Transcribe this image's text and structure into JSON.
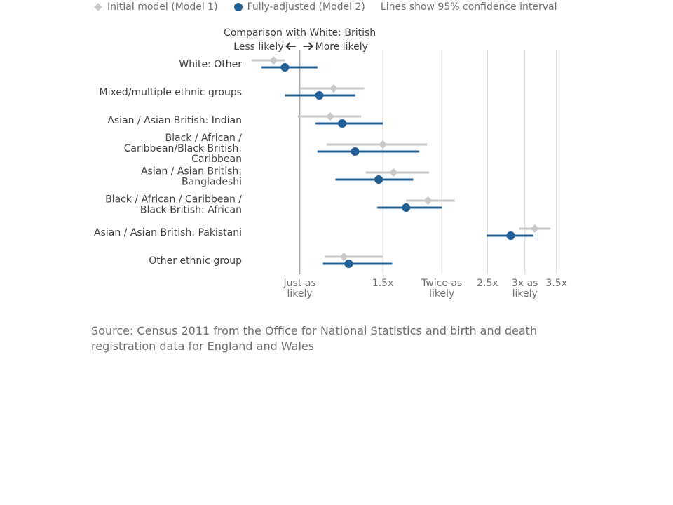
{
  "legend": {
    "model1": "Initial model (Model 1)",
    "model2": "Fully-adjusted (Model 2)",
    "note": "Lines show 95% confidence interval"
  },
  "annotation": {
    "title": "Comparison with White: British",
    "less": "Less likely",
    "more": "More likely"
  },
  "source": "Source: Census 2011 from the Office for National Statistics and birth and death registration data for England and Wales",
  "colors": {
    "model1": "#c8c8c8",
    "model2": "#206095",
    "gridline": "#d9d9d9",
    "reference": "#a8a8a8",
    "text": "#414042",
    "axis_text": "#707070"
  },
  "chart_data": {
    "type": "forest",
    "scale": "log",
    "xlim": [
      0.78,
      3.65
    ],
    "x_ticks": [
      {
        "value": 1.0,
        "label": [
          "Just as",
          "likely"
        ]
      },
      {
        "value": 1.5,
        "label": [
          "1.5x"
        ]
      },
      {
        "value": 2.0,
        "label": [
          "Twice as",
          "likely"
        ]
      },
      {
        "value": 2.5,
        "label": [
          "2.5x"
        ]
      },
      {
        "value": 3.0,
        "label": [
          "3x as",
          "likely"
        ]
      },
      {
        "value": 3.5,
        "label": [
          "3.5x"
        ]
      }
    ],
    "series": [
      {
        "name": "Initial model (Model 1)",
        "marker": "diamond"
      },
      {
        "name": "Fully-adjusted (Model 2)",
        "marker": "circle"
      }
    ],
    "groups": [
      {
        "label": [
          "White: Other"
        ],
        "model1": {
          "estimate": 0.88,
          "low": 0.79,
          "high": 0.93
        },
        "model2": {
          "estimate": 0.93,
          "low": 0.83,
          "high": 1.09
        }
      },
      {
        "label": [
          "Mixed/multiple ethnic groups"
        ],
        "model1": {
          "estimate": 1.18,
          "low": 1.0,
          "high": 1.37
        },
        "model2": {
          "estimate": 1.1,
          "low": 0.93,
          "high": 1.31
        }
      },
      {
        "label": [
          "Asian / Asian British: Indian"
        ],
        "model1": {
          "estimate": 1.16,
          "low": 0.99,
          "high": 1.35
        },
        "model2": {
          "estimate": 1.23,
          "low": 1.08,
          "high": 1.5
        }
      },
      {
        "label": [
          "Black / African /",
          "Caribbean/Black British:",
          "Caribbean"
        ],
        "model1": {
          "estimate": 1.5,
          "low": 1.14,
          "high": 1.86
        },
        "model2": {
          "estimate": 1.31,
          "low": 1.09,
          "high": 1.79
        }
      },
      {
        "label": [
          "Asian / Asian British:",
          "Bangladeshi"
        ],
        "model1": {
          "estimate": 1.58,
          "low": 1.38,
          "high": 1.88
        },
        "model2": {
          "estimate": 1.47,
          "low": 1.19,
          "high": 1.74
        }
      },
      {
        "label": [
          "Black / African / Caribbean /",
          "Black British: African"
        ],
        "model1": {
          "estimate": 1.87,
          "low": 1.68,
          "high": 2.13
        },
        "model2": {
          "estimate": 1.68,
          "low": 1.46,
          "high": 2.0
        }
      },
      {
        "label": [
          "Asian / Asian British: Pakistani"
        ],
        "model1": {
          "estimate": 3.15,
          "low": 2.92,
          "high": 3.4
        },
        "model2": {
          "estimate": 2.8,
          "low": 2.49,
          "high": 3.13
        }
      },
      {
        "label": [
          "Other ethnic group"
        ],
        "model1": {
          "estimate": 1.24,
          "low": 1.13,
          "high": 1.5
        },
        "model2": {
          "estimate": 1.27,
          "low": 1.12,
          "high": 1.57
        }
      }
    ]
  }
}
